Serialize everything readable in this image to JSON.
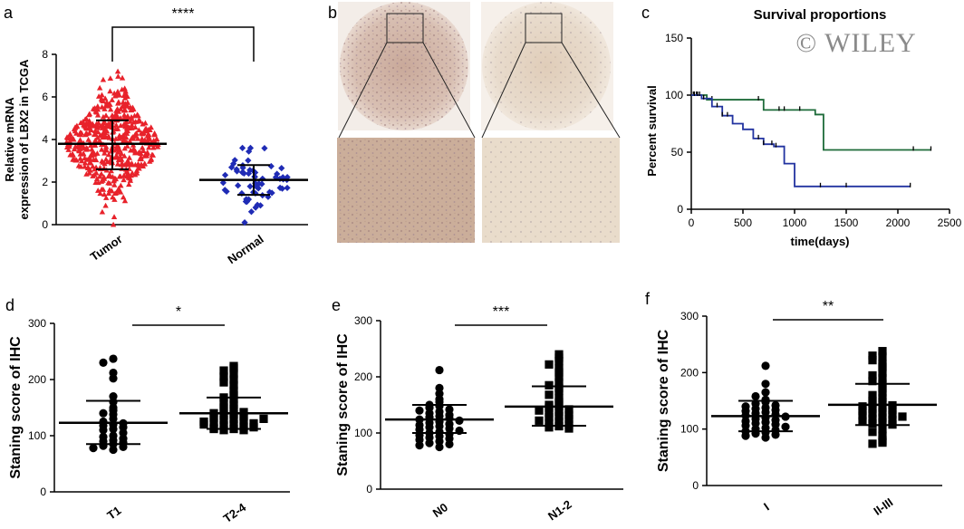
{
  "watermark": "© WILEY",
  "panel_labels": {
    "a": "a",
    "b": "b",
    "c": "c",
    "d": "d",
    "e": "e",
    "f": "f"
  },
  "panel_b": {
    "description_shown": false
  },
  "chart_data": [
    {
      "panel": "a",
      "type": "scatter",
      "categories": [
        "Tumor",
        "Normal"
      ],
      "ylabel": "Relative mRNA expression of LBX2 in TCGA",
      "ylim": [
        0,
        8
      ],
      "yticks": [
        0,
        2,
        4,
        6,
        8
      ],
      "significance": "****",
      "series": [
        {
          "category": "Tumor",
          "marker": "triangle",
          "color": "#e8222b",
          "mean": 3.8,
          "sd_low": 2.6,
          "sd_high": 4.9,
          "n": 500,
          "min": 0,
          "max": 7.2
        },
        {
          "category": "Normal",
          "marker": "diamond",
          "color": "#1f2bb5",
          "mean": 2.1,
          "sd_low": 1.4,
          "sd_high": 2.8,
          "n": 60,
          "min": 0.1,
          "max": 3.6
        }
      ]
    },
    {
      "panel": "c",
      "type": "line",
      "title": "Survival proportions",
      "xlabel": "time(days)",
      "ylabel": "Percent survival",
      "xlim": [
        0,
        2500
      ],
      "ylim": [
        0,
        150
      ],
      "xticks": [
        0,
        500,
        1000,
        1500,
        2000,
        2500
      ],
      "yticks": [
        0,
        50,
        100,
        150
      ],
      "series": [
        {
          "color": "#1e6b3a",
          "x": [
            0,
            150,
            150,
            700,
            700,
            1200,
            1200,
            1280,
            1280,
            2320
          ],
          "y": [
            100,
            100,
            96,
            96,
            87,
            87,
            83,
            83,
            52,
            52
          ],
          "censor_x": [
            20,
            50,
            200,
            650,
            850,
            900,
            1050,
            2150,
            2320
          ]
        },
        {
          "color": "#2233a0",
          "x": [
            0,
            100,
            200,
            300,
            400,
            500,
            600,
            700,
            800,
            900,
            1000,
            2120
          ],
          "y": [
            100,
            97,
            90,
            82,
            75,
            70,
            62,
            57,
            55,
            40,
            20,
            20
          ],
          "censor_x": [
            30,
            60,
            80,
            120,
            250,
            300,
            350,
            650,
            700,
            780,
            820,
            1250,
            1500,
            2120
          ]
        }
      ]
    },
    {
      "panel": "d",
      "type": "scatter",
      "categories": [
        "T1",
        "T2-4"
      ],
      "ylabel": "Staning score of IHC",
      "ylim": [
        0,
        300
      ],
      "yticks": [
        0,
        100,
        200,
        300
      ],
      "significance": "*",
      "series": [
        {
          "category": "T1",
          "marker": "circle",
          "mean": 123,
          "sd_low": 85,
          "sd_high": 162,
          "points": [
            237,
            230,
            212,
            202,
            170,
            160,
            150,
            145,
            140,
            138,
            130,
            125,
            122,
            120,
            118,
            115,
            112,
            110,
            105,
            100,
            98,
            95,
            92,
            90,
            88,
            85,
            82,
            80,
            78,
            75
          ]
        },
        {
          "category": "T2-4",
          "marker": "square",
          "mean": 140,
          "sd_low": 112,
          "sd_high": 168,
          "points": [
            224,
            220,
            216,
            210,
            205,
            200,
            195,
            190,
            180,
            172,
            168,
            165,
            160,
            155,
            150,
            148,
            145,
            142,
            140,
            138,
            136,
            134,
            132,
            130,
            128,
            126,
            124,
            122,
            120,
            118,
            116,
            114,
            112,
            110,
            110,
            112,
            115,
            120,
            125,
            130
          ]
        }
      ]
    },
    {
      "panel": "e",
      "type": "scatter",
      "categories": [
        "N0",
        "N1-2"
      ],
      "ylabel": "Staning score of IHC",
      "ylim": [
        0,
        300
      ],
      "yticks": [
        0,
        100,
        200,
        300
      ],
      "significance": "***",
      "series": [
        {
          "category": "N0",
          "marker": "circle",
          "mean": 124,
          "sd_low": 100,
          "sd_high": 150,
          "points": [
            212,
            180,
            170,
            160,
            155,
            150,
            148,
            145,
            142,
            140,
            138,
            135,
            132,
            130,
            128,
            126,
            124,
            122,
            120,
            118,
            116,
            114,
            112,
            110,
            108,
            106,
            104,
            102,
            100,
            98,
            96,
            94,
            92,
            90,
            88,
            85,
            82,
            80,
            78,
            75
          ]
        },
        {
          "category": "N1-2",
          "marker": "square",
          "mean": 147,
          "sd_low": 113,
          "sd_high": 183,
          "points": [
            240,
            234,
            228,
            222,
            215,
            208,
            200,
            190,
            185,
            180,
            175,
            168,
            162,
            155,
            150,
            148,
            145,
            142,
            140,
            138,
            135,
            132,
            130,
            128,
            125,
            122,
            120,
            118,
            115,
            112,
            110,
            108
          ]
        }
      ]
    },
    {
      "panel": "f",
      "type": "scatter",
      "categories": [
        "I",
        "II-III"
      ],
      "ylabel": "Staning score of IHC",
      "ylim": [
        0,
        300
      ],
      "yticks": [
        0,
        100,
        200,
        300
      ],
      "significance": "**",
      "series": [
        {
          "category": "I",
          "marker": "circle",
          "mean": 123,
          "sd_low": 96,
          "sd_high": 150,
          "points": [
            212,
            180,
            165,
            158,
            152,
            148,
            145,
            142,
            140,
            138,
            136,
            134,
            132,
            130,
            128,
            126,
            124,
            122,
            120,
            118,
            116,
            114,
            112,
            110,
            108,
            106,
            104,
            102,
            100,
            98,
            96,
            94,
            92,
            90,
            88,
            85
          ]
        },
        {
          "category": "II-III",
          "marker": "square",
          "mean": 143,
          "sd_low": 107,
          "sd_high": 180,
          "points": [
            238,
            230,
            228,
            222,
            215,
            210,
            200,
            195,
            190,
            185,
            180,
            172,
            165,
            160,
            155,
            150,
            148,
            145,
            142,
            140,
            138,
            136,
            134,
            132,
            130,
            128,
            126,
            124,
            122,
            120,
            118,
            116,
            114,
            112,
            110,
            108,
            100,
            95,
            88,
            80,
            76,
            74
          ]
        }
      ]
    }
  ]
}
